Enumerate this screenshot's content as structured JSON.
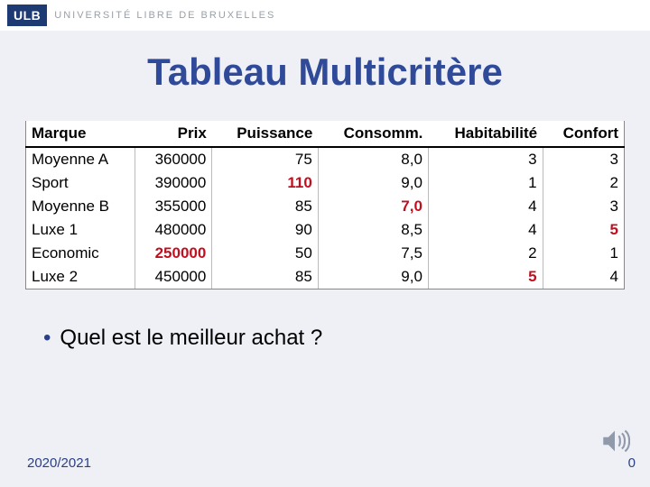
{
  "header": {
    "logo_text": "ULB",
    "university": "UNIVERSITÉ LIBRE DE BRUXELLES"
  },
  "title": "Tableau Multicritère",
  "table": {
    "columns": [
      "Marque",
      "Prix",
      "Puissance",
      "Consomm.",
      "Habitabilité",
      "Confort"
    ],
    "column_align": [
      "left",
      "right",
      "right",
      "right",
      "right",
      "right"
    ],
    "rows": [
      {
        "cells": [
          "Moyenne A",
          "360000",
          "75",
          "8,0",
          "3",
          "3"
        ],
        "highlight": [
          false,
          false,
          false,
          false,
          false,
          false
        ]
      },
      {
        "cells": [
          "Sport",
          "390000",
          "110",
          "9,0",
          "1",
          "2"
        ],
        "highlight": [
          false,
          false,
          true,
          false,
          false,
          false
        ]
      },
      {
        "cells": [
          "Moyenne B",
          "355000",
          "85",
          "7,0",
          "4",
          "3"
        ],
        "highlight": [
          false,
          false,
          false,
          true,
          false,
          false
        ]
      },
      {
        "cells": [
          "Luxe 1",
          "480000",
          "90",
          "8,5",
          "4",
          "5"
        ],
        "highlight": [
          false,
          false,
          false,
          false,
          false,
          true
        ]
      },
      {
        "cells": [
          "Economic",
          "250000",
          "50",
          "7,5",
          "2",
          "1"
        ],
        "highlight": [
          false,
          true,
          false,
          false,
          false,
          false
        ]
      },
      {
        "cells": [
          "Luxe 2",
          "450000",
          "85",
          "9,0",
          "5",
          "4"
        ],
        "highlight": [
          false,
          false,
          false,
          false,
          true,
          false
        ]
      }
    ],
    "header_bg": "#ffffff",
    "cell_font_size": 17,
    "highlight_color": "#c01020"
  },
  "bullet_text": "Quel est le meilleur achat ?",
  "footer": {
    "year": "2020/2021",
    "page": "0"
  },
  "colors": {
    "background": "#eef0f6",
    "title": "#304a9a",
    "accent": "#2a3f85"
  }
}
